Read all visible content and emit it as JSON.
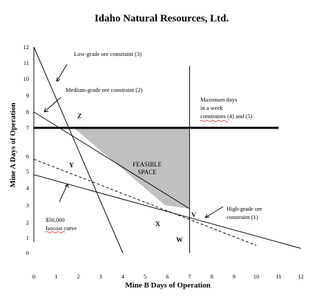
{
  "title": "Idaho Natural Resources, Ltd.",
  "x_axis_label": "Mine B Days of Operation",
  "y_axis_label": "Mine A Days of Operation",
  "x_ticks": [
    "0",
    "1",
    "2",
    "3",
    "4",
    "5",
    "6",
    "7",
    "8",
    "9",
    "10",
    "11",
    "12"
  ],
  "y_ticks": [
    "0",
    "1",
    "2",
    "3",
    "4",
    "5",
    "6",
    "7",
    "8",
    "9",
    "10",
    "11",
    "12"
  ],
  "annotations": {
    "low_grade": "Low-grade ore constraint (3)",
    "medium_grade": "Medium-grade ore constraint (2)",
    "max_days_1": "Maximum days",
    "max_days_2": "in a week",
    "max_days_3": "constraints (4) and (5)",
    "feasible_1": "FEASIBLE",
    "feasible_2": "SPACE",
    "high_grade_1": "High-grade ore",
    "high_grade_2": "constraint (1)",
    "isocost_1": "$50,000",
    "isocost_2": "Isocost curve"
  },
  "point_labels": {
    "z": "Z",
    "y": "Y",
    "x": "X",
    "w": "W",
    "v": "V"
  },
  "colors": {
    "feasible_fill": "#c0c0c0",
    "line": "#000000",
    "background": "#ffffff"
  },
  "chart_data": {
    "type": "line",
    "xlabel": "Mine B Days of Operation",
    "ylabel": "Mine A Days of Operation",
    "xlim": [
      0,
      12
    ],
    "ylim": [
      0,
      12
    ],
    "grid": false,
    "constraints": [
      {
        "label": "Low-grade ore constraint (3)",
        "points": [
          [
            0,
            12
          ],
          [
            4,
            0
          ]
        ],
        "style": "solid"
      },
      {
        "label": "Medium-grade ore constraint (2)",
        "points": [
          [
            0,
            8
          ],
          [
            7,
            2.8
          ]
        ],
        "style": "solid"
      },
      {
        "label": "High-grade ore constraint (1)",
        "points": [
          [
            0,
            4.8
          ],
          [
            12,
            0.3
          ]
        ],
        "style": "solid"
      },
      {
        "label": "Maximum days in a week constraints (4) and (5)",
        "points": [
          [
            0,
            7
          ],
          [
            11,
            7
          ]
        ],
        "style": "bold"
      },
      {
        "label": "Maximum days in a week constraints (4) and (5)",
        "points": [
          [
            7,
            10.8
          ],
          [
            7,
            0
          ]
        ],
        "style": "solid"
      },
      {
        "label": "$50,000 Isocost curve",
        "points": [
          [
            0,
            5.8
          ],
          [
            10,
            0.5
          ]
        ],
        "style": "dashed"
      }
    ],
    "feasible_region": [
      [
        1.8,
        7
      ],
      [
        7,
        7
      ],
      [
        7,
        2.8
      ],
      [
        5.9,
        3
      ]
    ],
    "labeled_points": [
      {
        "label": "Z",
        "x": 2,
        "y": 7.7
      },
      {
        "label": "Y",
        "x": 1.6,
        "y": 5.8
      },
      {
        "label": "X",
        "x": 5.7,
        "y": 2.1
      },
      {
        "label": "W",
        "x": 6.5,
        "y": 1.1
      },
      {
        "label": "V",
        "x": 7.1,
        "y": 2.9
      }
    ]
  }
}
